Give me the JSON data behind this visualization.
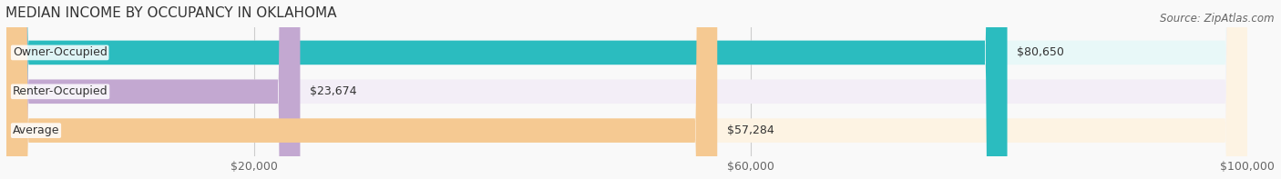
{
  "title": "MEDIAN INCOME BY OCCUPANCY IN OKLAHOMA",
  "source": "Source: ZipAtlas.com",
  "categories": [
    "Owner-Occupied",
    "Renter-Occupied",
    "Average"
  ],
  "values": [
    80650,
    23674,
    57284
  ],
  "labels": [
    "$80,650",
    "$23,674",
    "$57,284"
  ],
  "bar_colors": [
    "#2bbcbf",
    "#c3a8d1",
    "#f5c992"
  ],
  "bar_bg_colors": [
    "#e8f8f8",
    "#f3eef7",
    "#fdf3e3"
  ],
  "xlim": [
    0,
    100000
  ],
  "xticks": [
    20000,
    60000,
    100000
  ],
  "xticklabels": [
    "$20,000",
    "$60,000",
    "$100,000"
  ],
  "title_fontsize": 11,
  "label_fontsize": 9,
  "tick_fontsize": 9,
  "source_fontsize": 8.5,
  "bar_height": 0.62,
  "figsize": [
    14.06,
    1.97
  ],
  "dpi": 100
}
